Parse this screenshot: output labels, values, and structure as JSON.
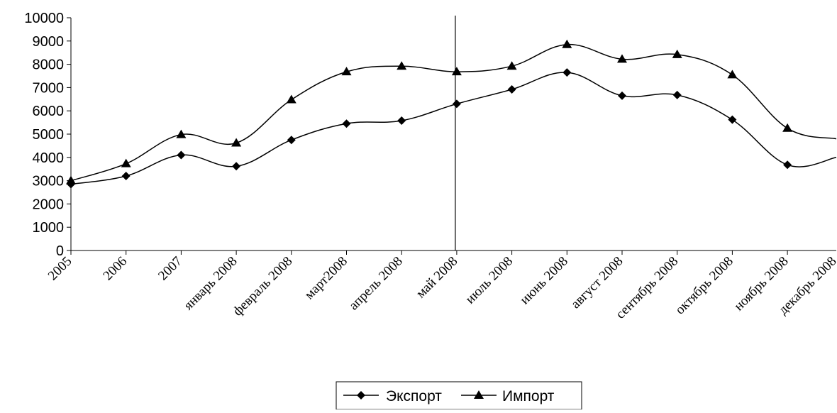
{
  "chart_data": {
    "type": "line",
    "title": "",
    "xlabel": "",
    "ylabel": "",
    "categories": [
      "2005",
      "2006",
      "2007",
      "январь 2008",
      "февраль 2008",
      "март2008",
      "апрель 2008",
      "май 2008",
      "июль 2008",
      "июнь 2008",
      "август 2008",
      "сентябрь 2008",
      "октябрь 2008",
      "ноябрь 2008",
      "декабрь 2008"
    ],
    "series": [
      {
        "name": "Экспорт",
        "marker": "diamond",
        "values": [
          2850,
          3200,
          4100,
          3620,
          4750,
          5450,
          5580,
          6300,
          6920,
          7650,
          6650,
          6680,
          5620,
          3680,
          4000
        ],
        "marked": [
          true,
          true,
          true,
          true,
          true,
          true,
          true,
          true,
          true,
          true,
          true,
          true,
          true,
          true,
          false
        ]
      },
      {
        "name": "Импорт",
        "marker": "triangle",
        "values": [
          3000,
          3730,
          4980,
          4620,
          6480,
          7680,
          7920,
          7680,
          7920,
          8850,
          8220,
          8420,
          7550,
          5250,
          4800
        ],
        "marked": [
          true,
          true,
          true,
          true,
          true,
          true,
          true,
          true,
          true,
          true,
          true,
          true,
          true,
          true,
          false
        ]
      }
    ],
    "ylim": [
      0,
      10000
    ],
    "yticks": [
      0,
      1000,
      2000,
      3000,
      4000,
      5000,
      6000,
      7000,
      8000,
      9000,
      10000
    ],
    "grid": false,
    "legend": "bottom-center",
    "vertical_line_at": "май 2008",
    "colors": {
      "line": "#000000",
      "background": "#ffffff"
    }
  }
}
